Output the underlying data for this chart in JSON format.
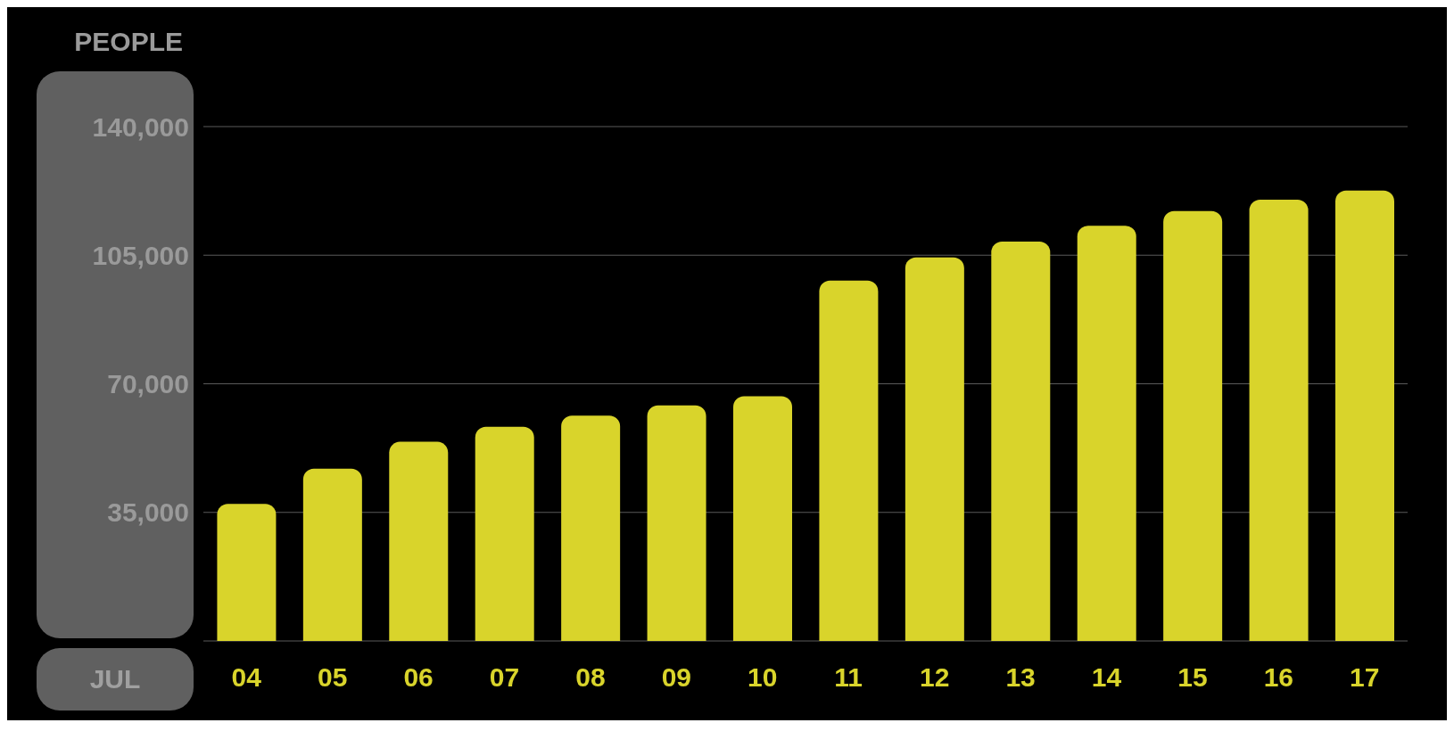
{
  "chart_data": {
    "type": "bar",
    "xlabel": "JUL",
    "ylabel": "PEOPLE",
    "categories": [
      "04",
      "05",
      "06",
      "07",
      "08",
      "09",
      "10",
      "11",
      "12",
      "13",
      "14",
      "15",
      "16",
      "17"
    ],
    "values": [
      37300,
      46900,
      54200,
      58300,
      61300,
      64100,
      66600,
      98100,
      104400,
      108700,
      113000,
      117000,
      120100,
      122600
    ],
    "color": "#d9d42b",
    "ylim": [
      0,
      140000
    ],
    "yticks": [
      {
        "value": 35000,
        "label": "35,000"
      },
      {
        "value": 70000,
        "label": "70,000"
      },
      {
        "value": 105000,
        "label": "105,000"
      },
      {
        "value": 140000,
        "label": "140,000"
      }
    ],
    "grid": "y"
  }
}
